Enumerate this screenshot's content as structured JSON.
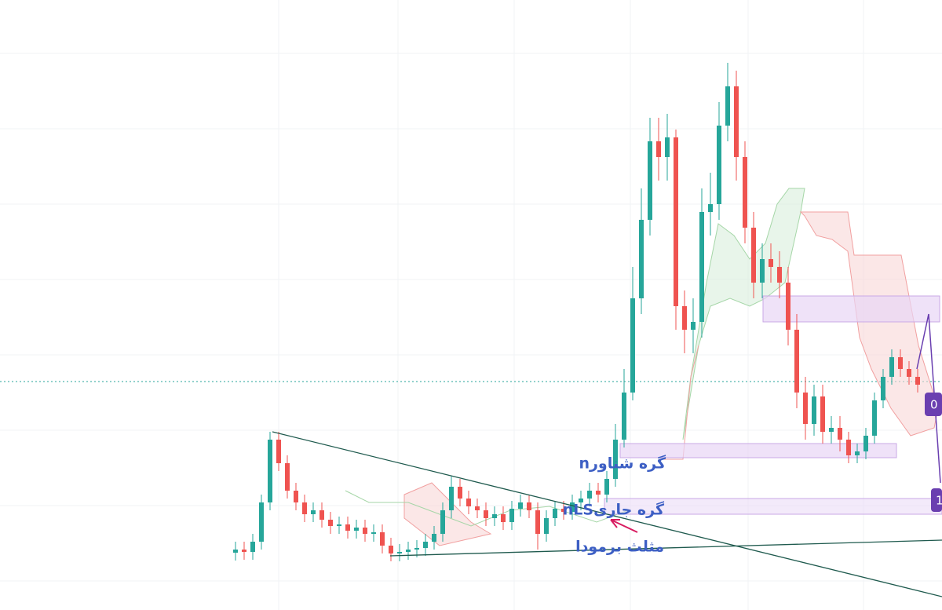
{
  "chart_data": {
    "type": "candlestick",
    "ylim": [
      0,
      77.7
    ],
    "up_color": "#26a69a",
    "down_color": "#ef5350",
    "open": [
      7.3,
      7.7,
      7.4,
      8.7,
      13.7,
      21.7,
      18.7,
      15.2,
      13.7,
      12.2,
      12.7,
      11.5,
      10.7,
      10.9,
      10.1,
      10.5,
      9.7,
      9.9,
      8.2,
      7.2,
      7.4,
      7.7,
      7.9,
      8.7,
      9.7,
      12.7,
      15.7,
      14.2,
      13.2,
      12.7,
      11.7,
      12.2,
      11.2,
      12.9,
      13.7,
      12.7,
      9.7,
      11.7,
      12.9,
      12.5,
      13.7,
      14.2,
      15.2,
      14.7,
      16.7,
      21.7,
      27.7,
      39.7,
      49.7,
      59.7,
      57.7,
      60.2,
      38.7,
      35.7,
      36.7,
      50.7,
      51.7,
      61.7,
      66.7,
      57.7,
      48.7,
      41.7,
      44.7,
      43.7,
      41.7,
      35.7,
      27.7,
      23.7,
      27.2,
      22.7,
      23.2,
      21.7,
      19.7,
      20.2,
      22.2,
      26.7,
      29.7,
      32.2,
      30.7,
      29.7
    ],
    "high": [
      8.7,
      8.7,
      9.7,
      14.7,
      22.7,
      22.7,
      19.7,
      16.2,
      14.7,
      13.7,
      13.7,
      12.5,
      11.9,
      11.9,
      11.5,
      11.5,
      10.9,
      10.9,
      9.2,
      8.4,
      8.7,
      8.9,
      9.7,
      10.7,
      13.7,
      17.0,
      16.7,
      15.2,
      14.2,
      13.7,
      13.2,
      13.2,
      13.9,
      14.7,
      14.7,
      13.7,
      12.7,
      13.9,
      13.9,
      14.7,
      15.2,
      16.2,
      16.2,
      17.7,
      23.7,
      30.7,
      43.7,
      53.7,
      62.7,
      62.7,
      63.2,
      61.2,
      40.7,
      39.7,
      53.7,
      55.7,
      64.7,
      69.7,
      68.7,
      59.7,
      50.7,
      46.7,
      46.7,
      45.7,
      43.7,
      37.7,
      29.7,
      28.7,
      28.7,
      24.7,
      24.7,
      22.7,
      21.2,
      23.2,
      27.7,
      30.7,
      33.2,
      33.2,
      31.7,
      30.7
    ],
    "low": [
      6.3,
      6.4,
      6.4,
      7.7,
      12.7,
      17.7,
      14.2,
      12.7,
      11.2,
      11.2,
      10.5,
      9.7,
      9.7,
      9.1,
      9.1,
      8.7,
      8.7,
      7.2,
      6.2,
      6.2,
      6.4,
      6.7,
      6.9,
      7.7,
      8.7,
      11.7,
      13.2,
      12.2,
      11.7,
      10.7,
      10.7,
      10.2,
      10.2,
      11.9,
      11.7,
      7.7,
      8.7,
      10.7,
      11.5,
      11.5,
      12.7,
      13.2,
      13.7,
      13.7,
      15.7,
      20.7,
      26.7,
      37.7,
      47.7,
      54.7,
      54.7,
      35.7,
      32.7,
      32.7,
      34.7,
      47.7,
      49.7,
      59.7,
      54.7,
      46.7,
      39.7,
      39.7,
      41.7,
      39.7,
      33.7,
      25.7,
      21.7,
      22.2,
      21.2,
      21.2,
      20.2,
      18.7,
      18.7,
      19.2,
      21.2,
      25.7,
      28.7,
      29.7,
      28.7,
      27.7
    ],
    "close": [
      7.7,
      7.4,
      8.7,
      13.7,
      21.7,
      18.7,
      15.2,
      13.7,
      12.2,
      12.7,
      11.5,
      10.7,
      10.9,
      10.1,
      10.5,
      9.7,
      9.9,
      8.2,
      7.2,
      7.4,
      7.7,
      7.9,
      8.7,
      9.7,
      12.7,
      15.7,
      14.2,
      13.2,
      12.7,
      11.7,
      12.2,
      11.2,
      12.9,
      13.7,
      12.7,
      9.7,
      11.7,
      12.9,
      12.5,
      13.7,
      14.2,
      15.2,
      14.7,
      16.7,
      21.7,
      27.7,
      39.7,
      49.7,
      59.7,
      57.7,
      60.2,
      38.7,
      35.7,
      36.7,
      50.7,
      51.7,
      61.7,
      66.7,
      57.7,
      48.7,
      41.7,
      44.7,
      43.7,
      41.7,
      35.7,
      27.7,
      23.7,
      27.2,
      22.7,
      23.2,
      21.7,
      19.7,
      20.2,
      22.2,
      26.7,
      29.7,
      32.2,
      30.7,
      29.7,
      28.7
    ],
    "annotations": [
      "nگره شناور",
      "nLSگره جاری",
      "مثلث برمودا"
    ],
    "badges": [
      "0",
      "1"
    ]
  }
}
